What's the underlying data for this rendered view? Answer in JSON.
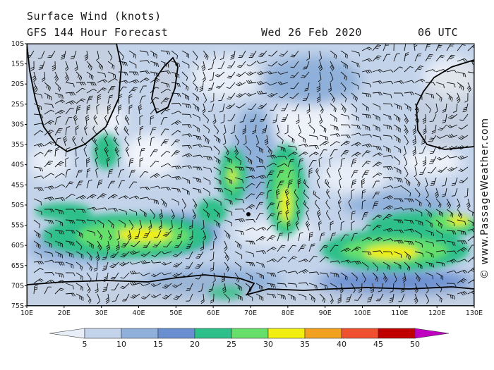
{
  "header": {
    "title": "Surface Wind (knots)",
    "model": "GFS 144 Hour Forecast",
    "date": "Wed 26 Feb 2020",
    "time": "06 UTC"
  },
  "map": {
    "lat_labels": [
      "10S",
      "15S",
      "20S",
      "25S",
      "30S",
      "35S",
      "40S",
      "45S",
      "50S",
      "55S",
      "60S",
      "65S",
      "70S",
      "75S"
    ],
    "lon_labels": [
      "10E",
      "20E",
      "30E",
      "40E",
      "50E",
      "60E",
      "70E",
      "80E",
      "90E",
      "100E",
      "110E",
      "120E",
      "130E"
    ],
    "lat_range": [
      -10,
      -75
    ],
    "lon_range": [
      10,
      130
    ]
  },
  "legend": {
    "ticks": [
      "5",
      "10",
      "15",
      "20",
      "25",
      "30",
      "35",
      "40",
      "45",
      "50"
    ],
    "colors": [
      "#e8eef7",
      "#c3d3ea",
      "#8fb0da",
      "#6a8fd0",
      "#2ec08a",
      "#66e06a",
      "#f2ef10",
      "#f2a020",
      "#ef5030",
      "#c00000",
      "#c000c0"
    ]
  },
  "credit": "© www.PassageWeather.com"
}
